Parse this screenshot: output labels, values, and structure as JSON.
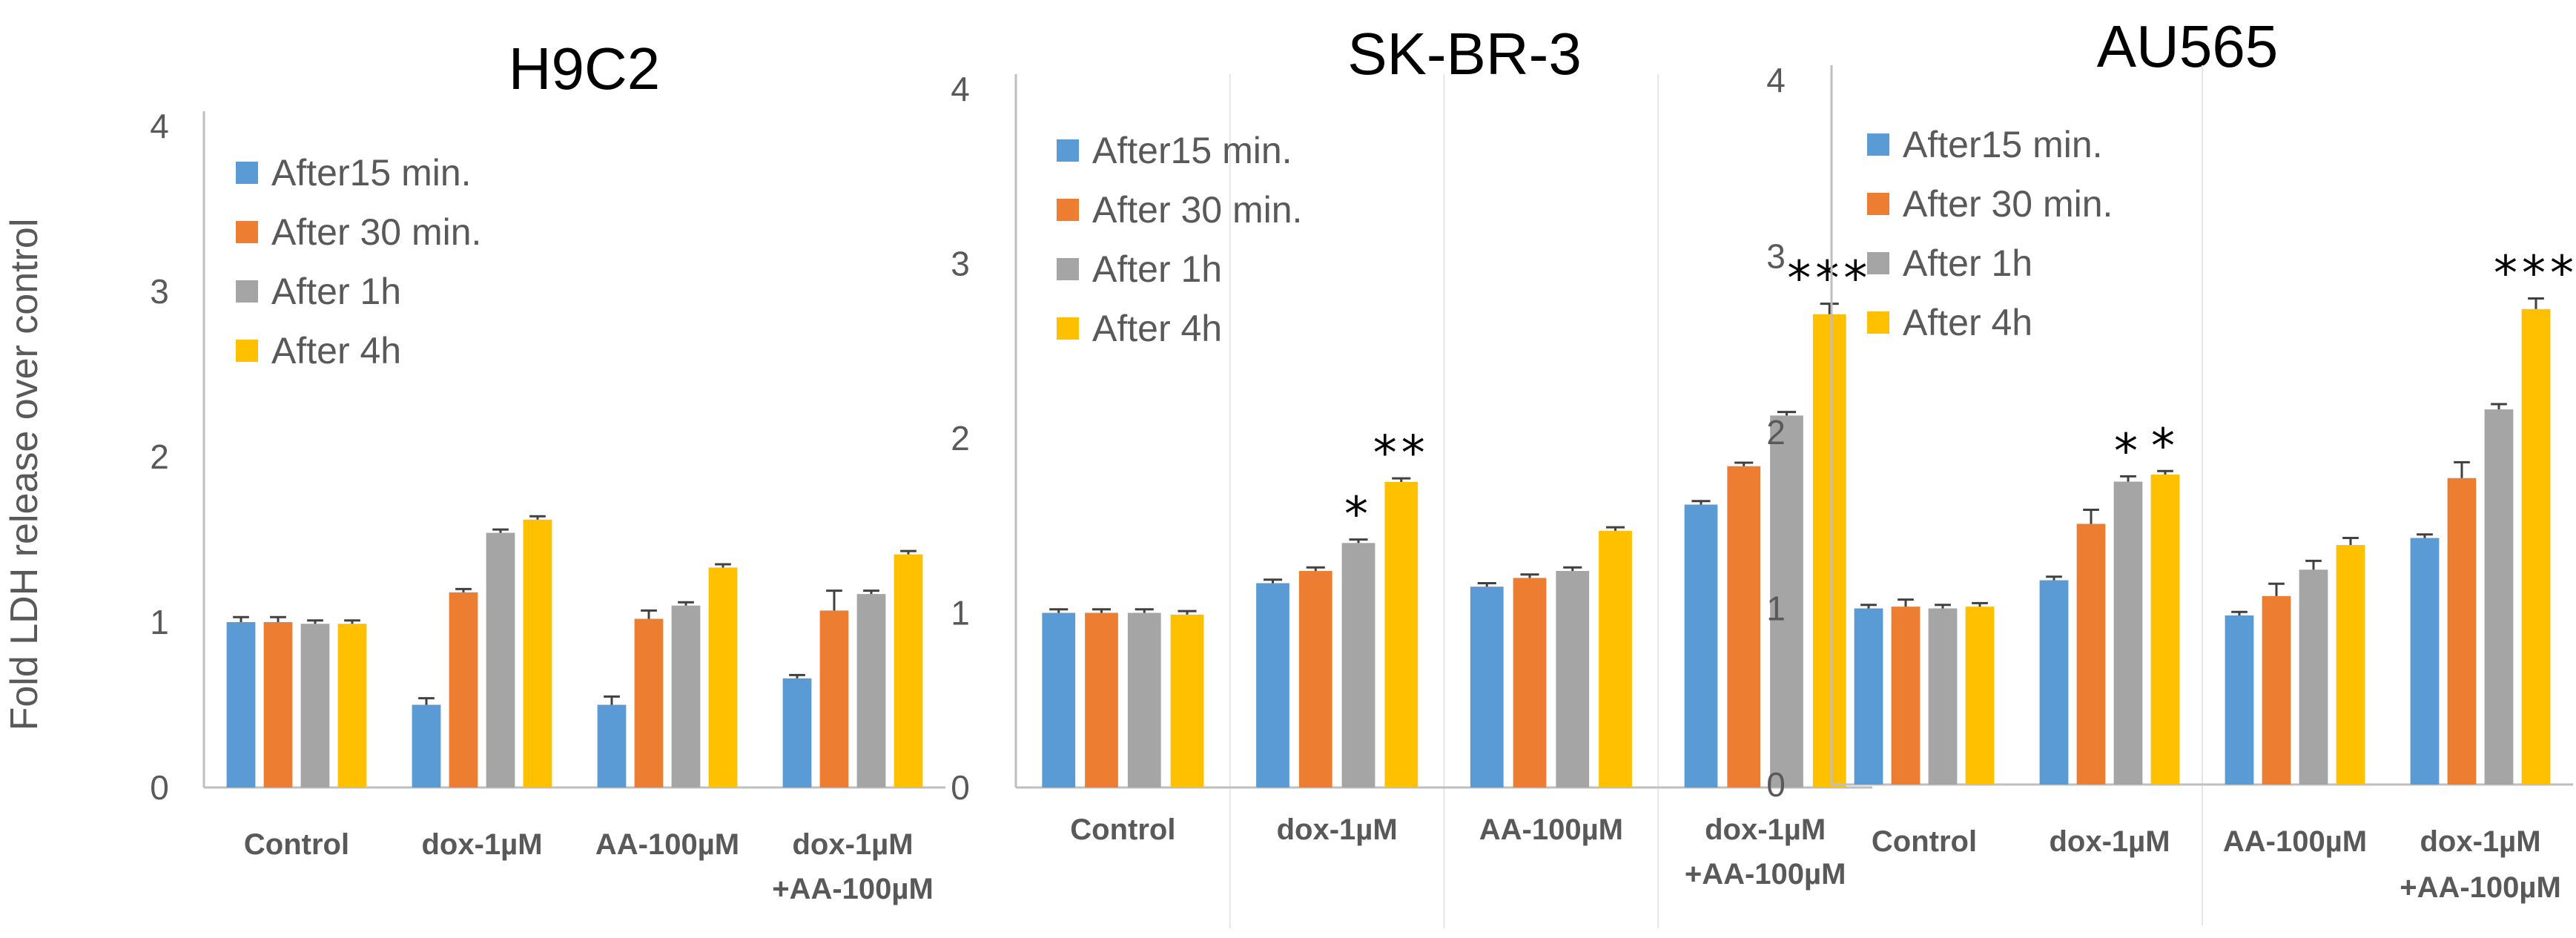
{
  "figure": {
    "ylabel": "Fold LDH release over control"
  },
  "colors": {
    "After15 min.": "#5b9bd5",
    "After 30 min.": "#ed7d31",
    "After 1h": "#a5a5a5",
    "After 4h": "#ffc000"
  },
  "chart_data": [
    {
      "type": "bar",
      "title": "H9C2",
      "ylabel": "Fold LDH release over control",
      "ylim": [
        0,
        4
      ],
      "yticks": [
        "0",
        "1",
        "2",
        "3",
        "4"
      ],
      "categories": [
        "Control",
        "dox-1µM",
        "AA-100µM",
        "dox-1µM +AA-100µM"
      ],
      "legend_position": "top-left",
      "series": [
        {
          "name": "After15 min.",
          "values": [
            1.0,
            0.5,
            0.5,
            0.66
          ],
          "errors": [
            0.03,
            0.04,
            0.05,
            0.02
          ]
        },
        {
          "name": "After 30 min.",
          "values": [
            1.0,
            1.18,
            1.02,
            1.07
          ],
          "errors": [
            0.03,
            0.02,
            0.05,
            0.12
          ]
        },
        {
          "name": "After 1h",
          "values": [
            0.99,
            1.54,
            1.1,
            1.17
          ],
          "errors": [
            0.02,
            0.02,
            0.02,
            0.02
          ]
        },
        {
          "name": "After 4h",
          "values": [
            0.99,
            1.62,
            1.33,
            1.41
          ],
          "errors": [
            0.02,
            0.02,
            0.02,
            0.02
          ]
        }
      ],
      "annotations": []
    },
    {
      "type": "bar",
      "title": "SK-BR-3",
      "ylabel": "",
      "ylim": [
        0,
        4
      ],
      "yticks": [
        "0",
        "1",
        "2",
        "3",
        "4"
      ],
      "categories": [
        "Control",
        "dox-1µM",
        "AA-100µM",
        "dox-1µM +AA-100µM"
      ],
      "legend_position": "top-left",
      "series": [
        {
          "name": "After15 min.",
          "values": [
            1.0,
            1.17,
            1.15,
            1.62
          ],
          "errors": [
            0.02,
            0.02,
            0.02,
            0.02
          ]
        },
        {
          "name": "After 30 min.",
          "values": [
            1.0,
            1.24,
            1.2,
            1.84
          ],
          "errors": [
            0.02,
            0.02,
            0.02,
            0.02
          ]
        },
        {
          "name": "After 1h",
          "values": [
            1.0,
            1.4,
            1.24,
            2.13
          ],
          "errors": [
            0.02,
            0.02,
            0.02,
            0.02
          ]
        },
        {
          "name": "After 4h",
          "values": [
            0.99,
            1.75,
            1.47,
            2.71
          ],
          "errors": [
            0.02,
            0.02,
            0.02,
            0.06
          ]
        }
      ],
      "annotations": [
        {
          "category": "dox-1µM",
          "series": "After 1h",
          "text": "*"
        },
        {
          "category": "dox-1µM",
          "series": "After 4h",
          "text": "**"
        },
        {
          "category": "dox-1µM +AA-100µM",
          "series": "After 4h",
          "text": "***"
        }
      ]
    },
    {
      "type": "bar",
      "title": "AU565",
      "ylabel": "",
      "ylim": [
        0,
        4
      ],
      "yticks": [
        "0",
        "1",
        "2",
        "3",
        "4"
      ],
      "categories": [
        "Control",
        "dox-1µM",
        "AA-100µM",
        "dox-1µM +AA-100µM"
      ],
      "legend_position": "top-left",
      "series": [
        {
          "name": "After15 min.",
          "values": [
            1.0,
            1.16,
            0.96,
            1.4
          ],
          "errors": [
            0.02,
            0.02,
            0.02,
            0.02
          ]
        },
        {
          "name": "After 30 min.",
          "values": [
            1.01,
            1.48,
            1.07,
            1.74
          ],
          "errors": [
            0.04,
            0.08,
            0.07,
            0.09
          ]
        },
        {
          "name": "After 1h",
          "values": [
            1.0,
            1.72,
            1.22,
            2.13
          ],
          "errors": [
            0.02,
            0.03,
            0.05,
            0.03
          ]
        },
        {
          "name": "After 4h",
          "values": [
            1.01,
            1.76,
            1.36,
            2.7
          ],
          "errors": [
            0.02,
            0.02,
            0.04,
            0.06
          ]
        }
      ],
      "annotations": [
        {
          "category": "dox-1µM",
          "series": "After 1h",
          "text": "*"
        },
        {
          "category": "dox-1µM",
          "series": "After 4h",
          "text": "*"
        },
        {
          "category": "dox-1µM +AA-100µM",
          "series": "After 4h",
          "text": "***"
        }
      ]
    }
  ]
}
